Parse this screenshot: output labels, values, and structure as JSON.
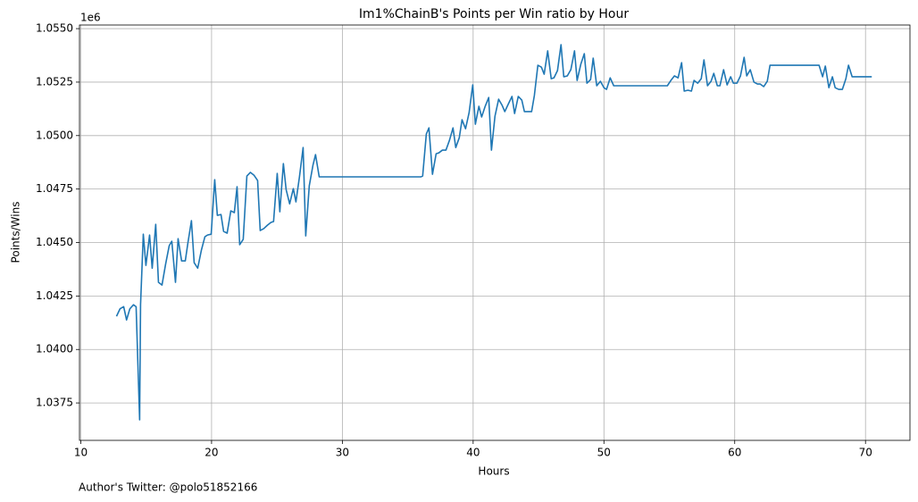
{
  "chart_data": {
    "type": "line",
    "title": "Im1%ChainB's Points per Win ratio by Hour",
    "x_label": "Hours",
    "y_label": "Points/Wins",
    "y_offset_label": "1e6",
    "footer": "Author's Twitter: @polo51852166",
    "grid": true,
    "xlim": [
      9.9,
      73.4
    ],
    "ylim": [
      1.03575,
      1.05517
    ],
    "xticks": [
      10,
      20,
      30,
      40,
      50,
      60,
      70
    ],
    "yticks": [
      {
        "value": 1.0375,
        "label": "1.0375"
      },
      {
        "value": 1.04,
        "label": "1.0400"
      },
      {
        "value": 1.0425,
        "label": "1.0425"
      },
      {
        "value": 1.045,
        "label": "1.0450"
      },
      {
        "value": 1.0475,
        "label": "1.0475"
      },
      {
        "value": 1.05,
        "label": "1.0500"
      },
      {
        "value": 1.0525,
        "label": "1.0525"
      },
      {
        "value": 1.055,
        "label": "1.0550"
      }
    ],
    "series": [
      {
        "color": "#1f77b4",
        "x": [
          12.73,
          13.0,
          13.28,
          13.5,
          13.75,
          14.03,
          14.23,
          14.5,
          14.57,
          14.78,
          14.98,
          15.26,
          15.46,
          15.73,
          15.94,
          16.21,
          16.48,
          16.76,
          16.96,
          17.24,
          17.44,
          17.71,
          17.99,
          18.19,
          18.46,
          18.67,
          18.94,
          19.22,
          19.49,
          19.69,
          19.97,
          20.24,
          20.44,
          20.72,
          20.92,
          21.19,
          21.47,
          21.74,
          21.95,
          22.15,
          22.42,
          22.7,
          22.97,
          23.24,
          23.52,
          23.72,
          23.99,
          24.27,
          24.54,
          24.74,
          25.02,
          25.22,
          25.49,
          25.7,
          25.97,
          26.25,
          26.45,
          26.72,
          27.0,
          27.2,
          27.47,
          27.75,
          27.95,
          28.23,
          36.0,
          36.14,
          36.42,
          36.62,
          36.89,
          37.17,
          37.37,
          37.65,
          37.92,
          38.19,
          38.46,
          38.67,
          38.94,
          39.15,
          39.42,
          39.69,
          39.97,
          40.17,
          40.44,
          40.65,
          40.92,
          41.19,
          41.4,
          41.67,
          41.95,
          42.22,
          42.42,
          42.7,
          42.97,
          43.17,
          43.45,
          43.72,
          43.92,
          44.2,
          44.47,
          44.68,
          44.95,
          45.22,
          45.43,
          45.7,
          45.97,
          46.18,
          46.45,
          46.72,
          46.93,
          47.2,
          47.47,
          47.75,
          47.95,
          48.23,
          48.5,
          48.7,
          48.98,
          49.18,
          49.45,
          49.73,
          50.0,
          50.2,
          50.48,
          50.75,
          54.85,
          55.12,
          55.39,
          55.67,
          55.94,
          56.14,
          56.42,
          56.69,
          56.89,
          57.17,
          57.44,
          57.65,
          57.92,
          58.19,
          58.4,
          58.67,
          58.87,
          59.15,
          59.42,
          59.69,
          59.9,
          60.17,
          60.44,
          60.72,
          60.92,
          61.19,
          61.47,
          61.74,
          61.95,
          62.22,
          62.49,
          62.7,
          66.45,
          66.72,
          66.93,
          67.2,
          67.47,
          67.68,
          67.95,
          68.23,
          68.5,
          68.7,
          68.98,
          70.48
        ],
        "values": [
          1.04155,
          1.0419,
          1.042,
          1.04138,
          1.0419,
          1.04209,
          1.042,
          1.03671,
          1.0421,
          1.04539,
          1.04393,
          1.04535,
          1.0438,
          1.04585,
          1.04314,
          1.04301,
          1.04397,
          1.04485,
          1.04506,
          1.04314,
          1.04518,
          1.04414,
          1.04414,
          1.04498,
          1.04602,
          1.04406,
          1.0438,
          1.04464,
          1.04527,
          1.04535,
          1.04539,
          1.04794,
          1.04627,
          1.04631,
          1.04552,
          1.04544,
          1.04648,
          1.0464,
          1.04761,
          1.0449,
          1.04515,
          1.04811,
          1.04828,
          1.04815,
          1.0479,
          1.04556,
          1.04565,
          1.04581,
          1.04594,
          1.04598,
          1.04823,
          1.04644,
          1.04869,
          1.04748,
          1.04681,
          1.04752,
          1.0469,
          1.04807,
          1.04944,
          1.04531,
          1.04765,
          1.04861,
          1.04911,
          1.04807,
          1.04807,
          1.04811,
          1.05007,
          1.05036,
          1.04819,
          1.04915,
          1.04919,
          1.04932,
          1.04932,
          1.04978,
          1.05036,
          1.04944,
          1.0499,
          1.05074,
          1.05032,
          1.05107,
          1.05237,
          1.05053,
          1.05137,
          1.05087,
          1.05137,
          1.05178,
          1.04932,
          1.05091,
          1.0517,
          1.05141,
          1.05112,
          1.05149,
          1.05183,
          1.05103,
          1.05183,
          1.05166,
          1.05112,
          1.05112,
          1.05112,
          1.05187,
          1.05329,
          1.0532,
          1.05287,
          1.05396,
          1.05266,
          1.0527,
          1.05304,
          1.05425,
          1.05275,
          1.05279,
          1.05308,
          1.05396,
          1.05258,
          1.05333,
          1.05383,
          1.05245,
          1.05262,
          1.05362,
          1.05233,
          1.05254,
          1.05224,
          1.05216,
          1.0527,
          1.05233,
          1.05233,
          1.05258,
          1.05279,
          1.0527,
          1.05341,
          1.05208,
          1.05212,
          1.05208,
          1.05258,
          1.05245,
          1.05266,
          1.05354,
          1.05233,
          1.05254,
          1.05291,
          1.05233,
          1.05233,
          1.05308,
          1.05237,
          1.05275,
          1.05245,
          1.05245,
          1.05279,
          1.05366,
          1.05279,
          1.05308,
          1.0525,
          1.05241,
          1.05241,
          1.05229,
          1.05254,
          1.05329,
          1.05329,
          1.05275,
          1.05325,
          1.05224,
          1.05275,
          1.05224,
          1.05216,
          1.05216,
          1.05266,
          1.05329,
          1.05275,
          1.05275
        ]
      }
    ]
  }
}
